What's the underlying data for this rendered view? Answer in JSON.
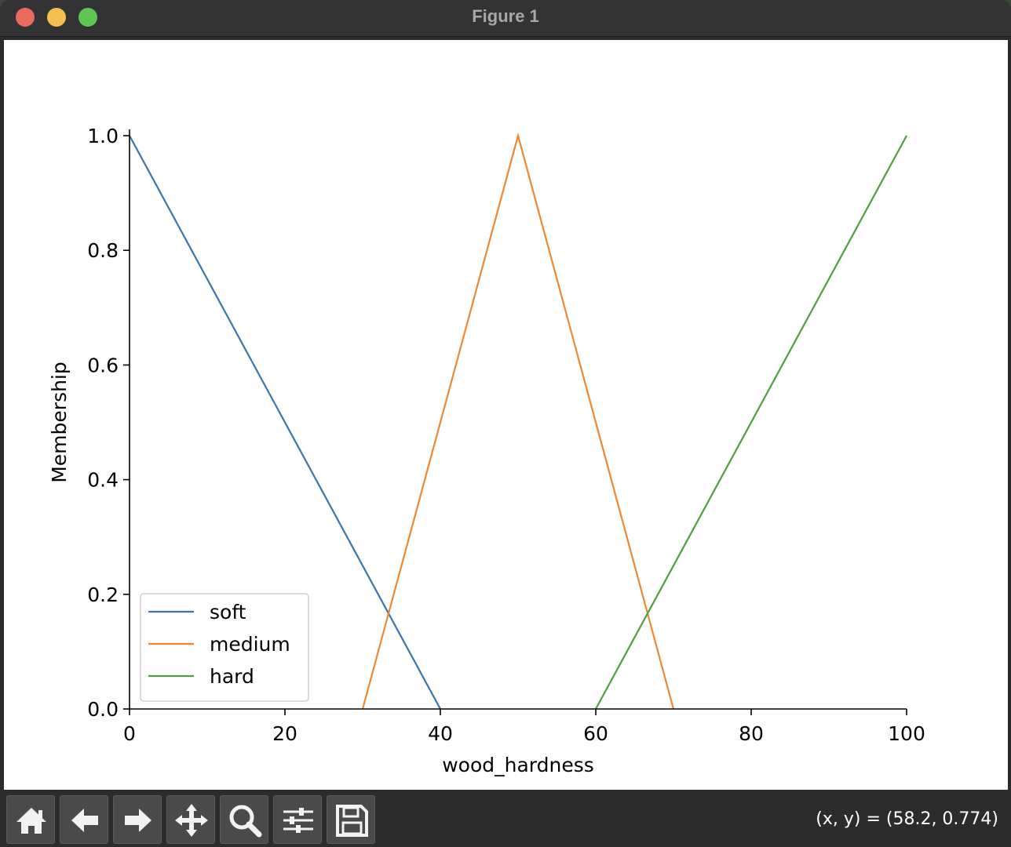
{
  "window": {
    "title": "Figure 1"
  },
  "toolbar": {
    "tools": [
      {
        "name": "home",
        "icon": "home-icon"
      },
      {
        "name": "back",
        "icon": "arrow-left-icon"
      },
      {
        "name": "forward",
        "icon": "arrow-right-icon"
      },
      {
        "name": "pan",
        "icon": "move-icon"
      },
      {
        "name": "zoom",
        "icon": "magnifier-icon"
      },
      {
        "name": "configure",
        "icon": "sliders-icon"
      },
      {
        "name": "save",
        "icon": "floppy-disk-icon"
      }
    ],
    "coordinates": "(x, y) = (58.2, 0.774)"
  },
  "chart_data": {
    "type": "line",
    "xlabel": "wood_hardness",
    "ylabel": "Membership",
    "xlim": [
      0,
      100
    ],
    "ylim": [
      0,
      1.0
    ],
    "xticks": [
      "0",
      "20",
      "40",
      "60",
      "80",
      "100"
    ],
    "yticks": [
      "0.0",
      "0.2",
      "0.4",
      "0.6",
      "0.8",
      "1.0"
    ],
    "grid": false,
    "legend": "lower-left",
    "series": [
      {
        "name": "soft",
        "color": "#3a75b0",
        "x": [
          0,
          40
        ],
        "y": [
          1.0,
          0.0
        ]
      },
      {
        "name": "medium",
        "color": "#ef8732",
        "x": [
          30,
          50,
          70
        ],
        "y": [
          0.0,
          1.0,
          0.0
        ]
      },
      {
        "name": "hard",
        "color": "#4f9e3f",
        "x": [
          60,
          100
        ],
        "y": [
          0.0,
          1.0
        ]
      }
    ]
  }
}
